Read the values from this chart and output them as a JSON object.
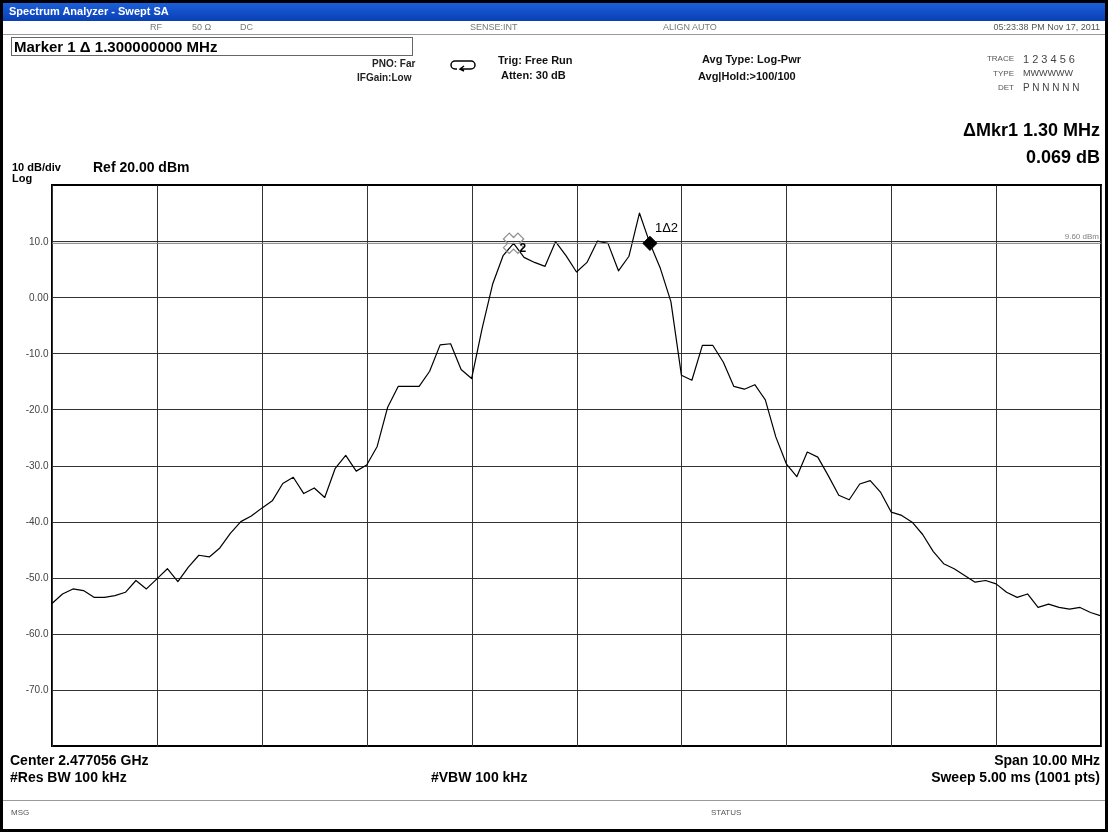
{
  "chart_data": {
    "type": "line",
    "title": "Spectrum Analyzer - Swept SA",
    "categories": [
      null,
      null,
      null,
      null,
      null,
      null,
      null,
      null,
      null,
      null,
      null,
      null,
      null,
      null,
      null,
      null,
      null,
      null,
      null,
      null,
      null,
      null,
      null,
      null,
      null,
      null,
      null,
      null,
      null,
      null,
      null,
      null,
      null,
      null,
      null,
      null,
      null,
      null,
      null,
      null,
      null,
      null,
      null,
      null,
      null,
      null,
      null,
      null,
      null,
      null,
      null,
      null,
      null,
      null,
      null,
      null,
      null,
      null,
      null,
      null,
      null,
      null,
      null,
      null,
      null,
      null,
      null,
      null,
      null,
      null,
      null,
      null,
      null,
      null,
      null,
      null,
      null,
      null,
      null,
      null,
      null,
      null,
      null,
      null,
      null,
      null,
      null,
      null,
      null,
      null,
      null,
      null,
      null,
      null,
      null,
      null,
      null,
      null,
      null,
      null,
      null
    ],
    "series": [
      {
        "color": "#000000",
        "values": [
          -54.6,
          -52.9,
          -52.0,
          -52.3,
          -53.5,
          -53.5,
          -53.2,
          -52.6,
          -50.5,
          -52.0,
          -50.2,
          -48.4,
          -50.7,
          -48.1,
          -46.0,
          -46.3,
          -44.7,
          -42.1,
          -40.0,
          -39.0,
          -37.6,
          -36.3,
          -33.2,
          -32.1,
          -35.0,
          -34.0,
          -35.7,
          -30.5,
          -28.2,
          -31.0,
          -29.9,
          -26.6,
          -19.6,
          -15.9,
          -15.9,
          -15.9,
          -13.2,
          -8.5,
          -8.3,
          -12.9,
          -14.5,
          -5.6,
          2.3,
          7.4,
          9.6,
          7.1,
          6.2,
          5.5,
          9.9,
          7.4,
          4.5,
          6.2,
          10.0,
          9.6,
          4.7,
          7.3,
          15.0,
          9.6,
          5.1,
          -0.8,
          -13.9,
          -14.8,
          -8.6,
          -8.6,
          -11.6,
          -15.9,
          -16.4,
          -15.6,
          -18.3,
          -24.9,
          -29.7,
          -32.0,
          -27.6,
          -28.5,
          -31.8,
          -35.3,
          -36.1,
          -33.3,
          -32.7,
          -34.8,
          -38.3,
          -38.9,
          -40.1,
          -42.3,
          -45.3,
          -47.5,
          -48.4,
          -49.6,
          -50.8,
          -50.5,
          -51.1,
          -52.6,
          -53.5,
          -52.9,
          -55.3,
          -54.7,
          -55.3,
          -55.6,
          -55.3,
          -56.2,
          -56.8
        ]
      },
      {
        "type": "scatter",
        "name": "1Δ2",
        "marker": "diamond",
        "color": "#000000",
        "values": [
          null,
          null,
          null,
          null,
          null,
          null,
          null,
          null,
          null,
          null,
          null,
          null,
          null,
          null,
          null,
          null,
          null,
          null,
          null,
          null,
          null,
          null,
          null,
          null,
          null,
          null,
          null,
          null,
          null,
          null,
          null,
          null,
          null,
          null,
          null,
          null,
          null,
          null,
          null,
          null,
          null,
          null,
          null,
          null,
          null,
          null,
          null,
          null,
          null,
          null,
          null,
          null,
          null,
          null,
          null,
          null,
          null,
          9.6,
          null,
          null,
          null,
          null,
          null,
          null,
          null,
          null,
          null,
          null,
          null,
          null,
          null,
          null,
          null,
          null,
          null,
          null,
          null,
          null,
          null,
          null,
          null,
          null,
          null,
          null,
          null,
          null,
          null,
          null,
          null,
          null,
          null,
          null,
          null,
          null,
          null,
          null,
          null,
          null,
          null,
          null,
          null
        ]
      },
      {
        "type": "scatter",
        "name": "2",
        "marker": "cross",
        "color": "#909090",
        "values": [
          null,
          null,
          null,
          null,
          null,
          null,
          null,
          null,
          null,
          null,
          null,
          null,
          null,
          null,
          null,
          null,
          null,
          null,
          null,
          null,
          null,
          null,
          null,
          null,
          null,
          null,
          null,
          null,
          null,
          null,
          null,
          null,
          null,
          null,
          null,
          null,
          null,
          null,
          null,
          null,
          null,
          null,
          null,
          null,
          9.6,
          null,
          null,
          null,
          null,
          null,
          null,
          null,
          null,
          null,
          null,
          null,
          null,
          null,
          null,
          null,
          null,
          null,
          null,
          null,
          null,
          null,
          null,
          null,
          null,
          null,
          null,
          null,
          null,
          null,
          null,
          null,
          null,
          null,
          null,
          null,
          null,
          null,
          null,
          null,
          null,
          null,
          null,
          null,
          null,
          null,
          null,
          null,
          null,
          null,
          null,
          null,
          null,
          null,
          null,
          null,
          null
        ]
      }
    ],
    "ylim": [
      -80,
      20
    ],
    "yticks": [
      {
        "value": 10,
        "label": "10.0"
      },
      {
        "value": 0,
        "label": "0.00"
      },
      {
        "value": -10,
        "label": "-10.0"
      },
      {
        "value": -20,
        "label": "-20.0"
      },
      {
        "value": -30,
        "label": "-30.0"
      },
      {
        "value": -40,
        "label": "-40.0"
      },
      {
        "value": -50,
        "label": "-50.0"
      },
      {
        "value": -60,
        "label": "-60.0"
      },
      {
        "value": -70,
        "label": "-70.0"
      }
    ],
    "grid": true,
    "marker": "none",
    "line_style": "solid",
    "tick_labels": "y",
    "ref_lines": [
      {
        "axis": "y",
        "value": 9.6,
        "label": "9.60 dBm",
        "color": "#808080"
      }
    ],
    "annotations": [
      "RF",
      "50 Ω",
      "DC",
      "SENSE:INT",
      "ALIGN AUTO",
      "05:23:38 PM Nov 17, 2011",
      "Marker 1 Δ  1.300000000 MHz",
      "PNO: Far",
      "IFGain:Low",
      "Trig: Free Run",
      "Atten: 30 dB",
      "Avg Type: Log-Pwr",
      "Avg|Hold:>100/100",
      "TRACE",
      "1 2 3 4 5 6",
      "TYPE",
      "MWWWWW",
      "DET",
      "P N N N N N",
      "ΔMkr1 1.30 MHz",
      "0.069 dB",
      "10 dB/div",
      "Ref 20.00 dBm",
      "Log",
      "Center 2.477056 GHz",
      "Span 10.00 MHz",
      "#Res BW 100 kHz",
      "#VBW 100 kHz",
      "Sweep  5.00 ms (1001 pts)",
      "MSG",
      "STATUS"
    ]
  }
}
